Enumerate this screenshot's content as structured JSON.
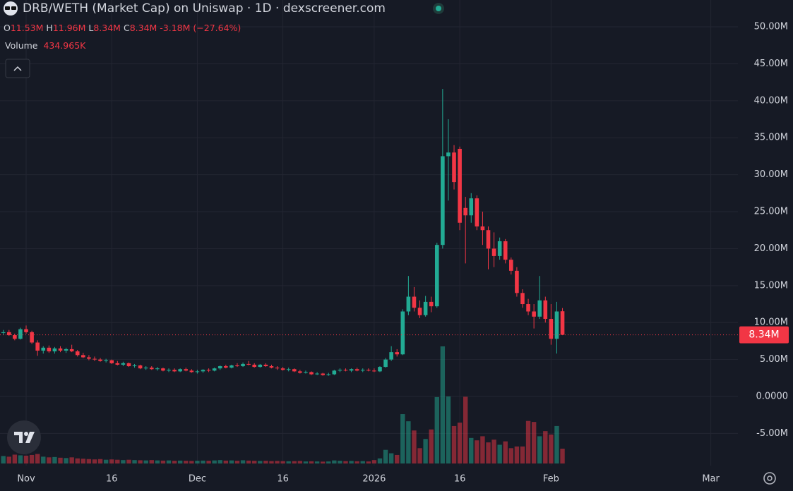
{
  "chart_data": {
    "type": "candlestick",
    "title": "DRB/WETH (Market Cap) on Uniswap · 1D · dexscreener.com",
    "ohlc_legend": {
      "o_key": "O",
      "o": "11.53M",
      "h_key": "H",
      "h": "11.96M",
      "l_key": "L",
      "l": "8.34M",
      "c_key": "C",
      "c": "8.34M",
      "change": "-3.18M",
      "change_pct": "(−27.64%)"
    },
    "volume_legend": {
      "key": "Volume",
      "value": "434.965K"
    },
    "last_label": "8.34M",
    "up_color": "#22ab94",
    "down_color": "#f23645",
    "grid": true,
    "categories": [
      null,
      null,
      null,
      null,
      "Nov",
      null,
      null,
      null,
      null,
      null,
      null,
      null,
      null,
      null,
      null,
      null,
      null,
      null,
      null,
      "16",
      null,
      null,
      null,
      null,
      null,
      null,
      null,
      null,
      null,
      null,
      null,
      null,
      null,
      null,
      "Dec",
      null,
      null,
      null,
      null,
      null,
      null,
      null,
      null,
      null,
      null,
      null,
      null,
      null,
      null,
      "16",
      null,
      null,
      null,
      null,
      null,
      null,
      null,
      null,
      null,
      null,
      null,
      null,
      null,
      null,
      null,
      "2026",
      null,
      null,
      null,
      null,
      null,
      null,
      null,
      null,
      null,
      null,
      null,
      null,
      null,
      null,
      "16",
      null,
      null,
      null,
      null,
      null,
      null,
      null,
      null,
      null,
      null,
      null,
      null,
      null,
      null,
      null,
      "Feb",
      null,
      null,
      null,
      null,
      null,
      null,
      null,
      null,
      null,
      null,
      null,
      null,
      null,
      null,
      null,
      null,
      null,
      null,
      null,
      null,
      null,
      null,
      null,
      null,
      null,
      null,
      null,
      "Mar"
    ],
    "open": [
      8600000,
      8700000,
      8300000,
      7800000,
      9100000,
      8700000,
      7300000,
      6200000,
      6600000,
      6100000,
      6500000,
      6200000,
      6400000,
      6100000,
      5600000,
      5300000,
      5100000,
      5000000,
      4800000,
      4900000,
      4500000,
      4300000,
      4500000,
      4100000,
      4200000,
      3800000,
      3900000,
      3700000,
      3800000,
      3500000,
      3600000,
      3400000,
      3700000,
      3500000,
      3300000,
      3400000,
      3600000,
      3500000,
      3800000,
      4100000,
      3900000,
      4200000,
      4100000,
      4400000,
      4300000,
      4000000,
      4300000,
      4100000,
      3900000,
      3800000,
      3600000,
      3700000,
      3400000,
      3200000,
      3300000,
      3000000,
      3100000,
      2900000,
      3000000,
      3500000,
      3600000,
      3500000,
      3700000,
      3500000,
      3600000,
      3500000,
      3400000,
      4000000,
      5000000,
      6000000,
      5700000,
      11500000,
      13500000,
      12000000,
      11000000,
      12800000,
      12200000,
      20500000,
      32500000,
      33000000,
      33500000,
      25500000,
      24500000,
      26800000,
      23000000,
      22500000,
      20000000,
      19000000,
      21000000,
      18500000,
      17000000,
      14000000,
      12500000,
      11500000,
      10800000,
      13000000,
      10500000,
      7800000,
      11530000,
      null,
      null,
      null,
      null,
      null,
      null,
      null,
      null,
      null,
      null,
      null,
      null,
      null,
      null,
      null,
      null,
      null,
      null,
      null,
      null,
      null,
      null,
      null,
      null,
      null,
      null
    ],
    "high": [
      9000000,
      9000000,
      8500000,
      9300000,
      9600000,
      8900000,
      7600000,
      6800000,
      6900000,
      6700000,
      6800000,
      6600000,
      7000000,
      6300000,
      5900000,
      5600000,
      5400000,
      5200000,
      5100000,
      5000000,
      4800000,
      4700000,
      4600000,
      4400000,
      4300000,
      4100000,
      4100000,
      4000000,
      3900000,
      3800000,
      3800000,
      3800000,
      3900000,
      3700000,
      3600000,
      3700000,
      3800000,
      3900000,
      4200000,
      4300000,
      4300000,
      4500000,
      4600000,
      4800000,
      4500000,
      4400000,
      4500000,
      4300000,
      4100000,
      4000000,
      3900000,
      3800000,
      3600000,
      3500000,
      3400000,
      3300000,
      3200000,
      3200000,
      3600000,
      3800000,
      3800000,
      3800000,
      3900000,
      3800000,
      3800000,
      3800000,
      4100000,
      5200000,
      6800000,
      6400000,
      11800000,
      16300000,
      14800000,
      13000000,
      13600000,
      13500000,
      20800000,
      41600000,
      37500000,
      34000000,
      33800000,
      27000000,
      27500000,
      27200000,
      25000000,
      23000000,
      22200000,
      21500000,
      21300000,
      18800000,
      17500000,
      14500000,
      13200000,
      12500000,
      16300000,
      13500000,
      12500000,
      12800000,
      11960000,
      null,
      null,
      null,
      null,
      null,
      null,
      null,
      null,
      null,
      null,
      null,
      null,
      null,
      null,
      null,
      null,
      null,
      null,
      null,
      null,
      null,
      null,
      null,
      null,
      null,
      null
    ],
    "low": [
      8300000,
      8200000,
      7600000,
      7700000,
      8500000,
      7100000,
      5500000,
      5800000,
      5900000,
      5800000,
      6000000,
      5900000,
      6000000,
      5400000,
      5200000,
      4900000,
      4800000,
      4700000,
      4600000,
      4400000,
      4200000,
      4100000,
      4000000,
      3900000,
      3700000,
      3600000,
      3600000,
      3500000,
      3400000,
      3300000,
      3300000,
      3300000,
      3400000,
      3200000,
      3100000,
      3200000,
      3300000,
      3400000,
      3600000,
      3800000,
      3800000,
      4000000,
      4000000,
      4200000,
      3900000,
      3900000,
      4000000,
      3800000,
      3600000,
      3500000,
      3400000,
      3300000,
      3100000,
      3100000,
      2900000,
      2900000,
      2800000,
      2800000,
      2900000,
      3300000,
      3400000,
      3300000,
      3400000,
      3300000,
      3400000,
      3300000,
      3300000,
      3900000,
      4800000,
      5400000,
      5600000,
      11000000,
      11500000,
      10600000,
      10800000,
      11400000,
      12000000,
      20000000,
      26500000,
      28000000,
      22500000,
      18000000,
      23500000,
      22500000,
      20500000,
      17200000,
      17500000,
      18500000,
      18000000,
      16500000,
      13500000,
      12000000,
      11000000,
      9200000,
      10500000,
      10000000,
      7000000,
      5800000,
      8340000,
      null,
      null,
      null,
      null,
      null,
      null,
      null,
      null,
      null,
      null,
      null,
      null,
      null,
      null,
      null,
      null,
      null,
      null,
      null,
      null,
      null,
      null,
      null,
      null,
      null,
      null
    ],
    "close": [
      8700000,
      8300000,
      7800000,
      9100000,
      8700000,
      7300000,
      6200000,
      6600000,
      6100000,
      6500000,
      6200000,
      6400000,
      6100000,
      5600000,
      5300000,
      5100000,
      5000000,
      4800000,
      4900000,
      4500000,
      4300000,
      4500000,
      4100000,
      4200000,
      3800000,
      3900000,
      3700000,
      3800000,
      3500000,
      3600000,
      3400000,
      3700000,
      3500000,
      3300000,
      3400000,
      3600000,
      3500000,
      3800000,
      4100000,
      3900000,
      4200000,
      4100000,
      4400000,
      4300000,
      4000000,
      4300000,
      4100000,
      3900000,
      3800000,
      3600000,
      3700000,
      3400000,
      3200000,
      3300000,
      3000000,
      3100000,
      2900000,
      3000000,
      3500000,
      3600000,
      3500000,
      3700000,
      3500000,
      3600000,
      3500000,
      3400000,
      4000000,
      5000000,
      6000000,
      5700000,
      11500000,
      13500000,
      12000000,
      11000000,
      12800000,
      12200000,
      20500000,
      32500000,
      33000000,
      29000000,
      23500000,
      24500000,
      26800000,
      23000000,
      22500000,
      20000000,
      19000000,
      21000000,
      18500000,
      17000000,
      14000000,
      12500000,
      11500000,
      10800000,
      13000000,
      10500000,
      7800000,
      11500000,
      8340000,
      null,
      null,
      null,
      null,
      null,
      null,
      null,
      null,
      null,
      null,
      null,
      null,
      null,
      null,
      null,
      null,
      null,
      null,
      null,
      null,
      null,
      null,
      null,
      null,
      null,
      null
    ],
    "volume": [
      220000,
      200000,
      260000,
      240000,
      230000,
      250000,
      280000,
      200000,
      180000,
      190000,
      170000,
      160000,
      180000,
      150000,
      140000,
      130000,
      120000,
      130000,
      110000,
      120000,
      110000,
      100000,
      110000,
      100000,
      95000,
      90000,
      100000,
      90000,
      85000,
      90000,
      80000,
      85000,
      80000,
      75000,
      80000,
      85000,
      80000,
      90000,
      100000,
      85000,
      90000,
      80000,
      95000,
      85000,
      80000,
      75000,
      80000,
      70000,
      75000,
      70000,
      65000,
      70000,
      75000,
      60000,
      65000,
      60000,
      55000,
      60000,
      90000,
      80000,
      70000,
      75000,
      65000,
      70000,
      60000,
      100000,
      150000,
      400000,
      300000,
      250000,
      1450000,
      1240000,
      970000,
      450000,
      720000,
      1000000,
      1950000,
      3440000,
      1970000,
      1100000,
      1200000,
      1960000,
      750000,
      680000,
      800000,
      620000,
      700000,
      550000,
      650000,
      450000,
      500000,
      500000,
      1250000,
      1220000,
      800000,
      950000,
      850000,
      1100000,
      434965,
      null,
      null,
      null,
      null,
      null,
      null,
      null,
      null,
      null,
      null,
      null,
      null,
      null,
      null,
      null,
      null,
      null,
      null,
      null,
      null,
      null,
      null,
      null,
      null,
      null,
      null
    ],
    "ylim": [
      -9350000,
      53630000
    ],
    "yticks": [
      {
        "value": 50000000,
        "label": "50.00M"
      },
      {
        "value": 45000000,
        "label": "45.00M"
      },
      {
        "value": 40000000,
        "label": "40.00M"
      },
      {
        "value": 35000000,
        "label": "35.00M"
      },
      {
        "value": 30000000,
        "label": "30.00M"
      },
      {
        "value": 25000000,
        "label": "25.00M"
      },
      {
        "value": 20000000,
        "label": "20.00M"
      },
      {
        "value": 15000000,
        "label": "15.00M"
      },
      {
        "value": 10000000,
        "label": "10.00M"
      },
      {
        "value": 5000000,
        "label": "5.00M"
      },
      {
        "value": 0,
        "label": "0.0000"
      },
      {
        "value": -5000000,
        "label": "-5.00M"
      }
    ]
  }
}
